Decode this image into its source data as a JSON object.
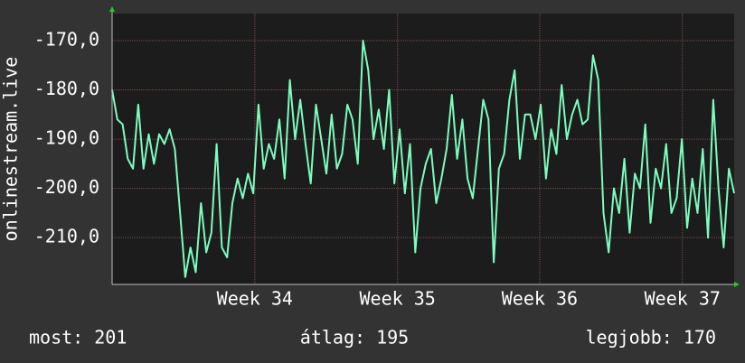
{
  "chart_data": {
    "type": "line",
    "y_label": "onlinestream.live",
    "series": [
      {
        "name": "onlinestream.live",
        "color": "#7dfcbd",
        "values": [
          -180,
          -186,
          -187,
          -194,
          -196,
          -183,
          -196,
          -189,
          -195,
          -189,
          -191,
          -188,
          -192,
          -205,
          -218,
          -212,
          -217,
          -203,
          -213,
          -209,
          -191,
          -212,
          -214,
          -203,
          -198,
          -202,
          -197,
          -201,
          -183,
          -196,
          -191,
          -194,
          -186,
          -198,
          -178,
          -190,
          -182,
          -191,
          -199,
          -183,
          -190,
          -197,
          -185,
          -196,
          -193,
          -183,
          -186,
          -195,
          -170,
          -176,
          -190,
          -184,
          -192,
          -180,
          -199,
          -188,
          -201,
          -191,
          -213,
          -200,
          -195,
          -192,
          -203,
          -198,
          -192,
          -181,
          -194,
          -186,
          -198,
          -202,
          -192,
          -182,
          -186,
          -215,
          -196,
          -193,
          -182,
          -176,
          -194,
          -185,
          -185,
          -190,
          -183,
          -198,
          -188,
          -193,
          -179,
          -190,
          -185,
          -182,
          -187,
          -186,
          -173,
          -178,
          -205,
          -213,
          -200,
          -205,
          -194,
          -209,
          -197,
          -200,
          -187,
          -207,
          -196,
          -200,
          -191,
          -205,
          -202,
          -190,
          -208,
          -198,
          -205,
          -192,
          -210,
          -182,
          -200,
          -212,
          -196,
          -201
        ]
      }
    ],
    "xlim": [
      0,
      119
    ],
    "xticks": [
      {
        "value": 27.3,
        "label": "Week 34"
      },
      {
        "value": 54.6,
        "label": "Week 35"
      },
      {
        "value": 81.8,
        "label": "Week 36"
      },
      {
        "value": 109.1,
        "label": "Week 37"
      }
    ],
    "ylim": [
      -219.5,
      -164.5
    ],
    "yticks": [
      {
        "value": -210,
        "label": "-210,0"
      },
      {
        "value": -200,
        "label": "-200,0"
      },
      {
        "value": -190,
        "label": "-190,0"
      },
      {
        "value": -180,
        "label": "-180,0"
      },
      {
        "value": -170,
        "label": "-170,0"
      }
    ],
    "grid": true,
    "footer": {
      "current": "most: 201",
      "average": "átlag: 195",
      "best": "legjobb: 170"
    }
  }
}
